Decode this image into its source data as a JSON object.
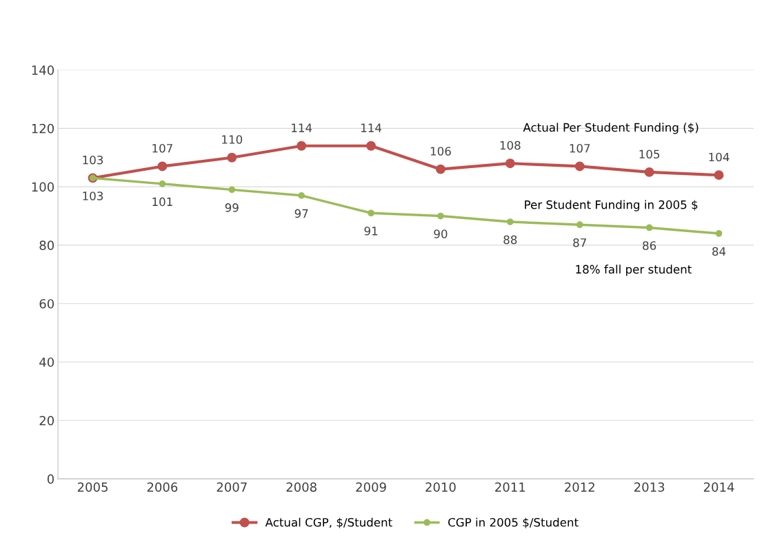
{
  "chart_data": {
    "type": "line",
    "categories": [
      "2005",
      "2006",
      "2007",
      "2008",
      "2009",
      "2010",
      "2011",
      "2012",
      "2013",
      "2014"
    ],
    "series": [
      {
        "name": "Actual CGP, $/Student",
        "color": "#c0504d",
        "values": [
          103,
          107,
          110,
          114,
          114,
          106,
          108,
          107,
          105,
          104
        ]
      },
      {
        "name": "CGP in 2005 $/Student",
        "color": "#9bbb59",
        "values": [
          103,
          101,
          99,
          97,
          91,
          90,
          88,
          87,
          86,
          84
        ]
      }
    ],
    "ylim": [
      0,
      140
    ],
    "yticks": [
      0,
      20,
      40,
      60,
      80,
      100,
      120,
      140
    ],
    "grid": "y",
    "legend": "bottom",
    "marker": "circle",
    "data_labels": true,
    "annotations": [
      "Actual Per Student Funding ($)",
      "Per Student Funding in 2005 $",
      "18% fall per student"
    ]
  }
}
